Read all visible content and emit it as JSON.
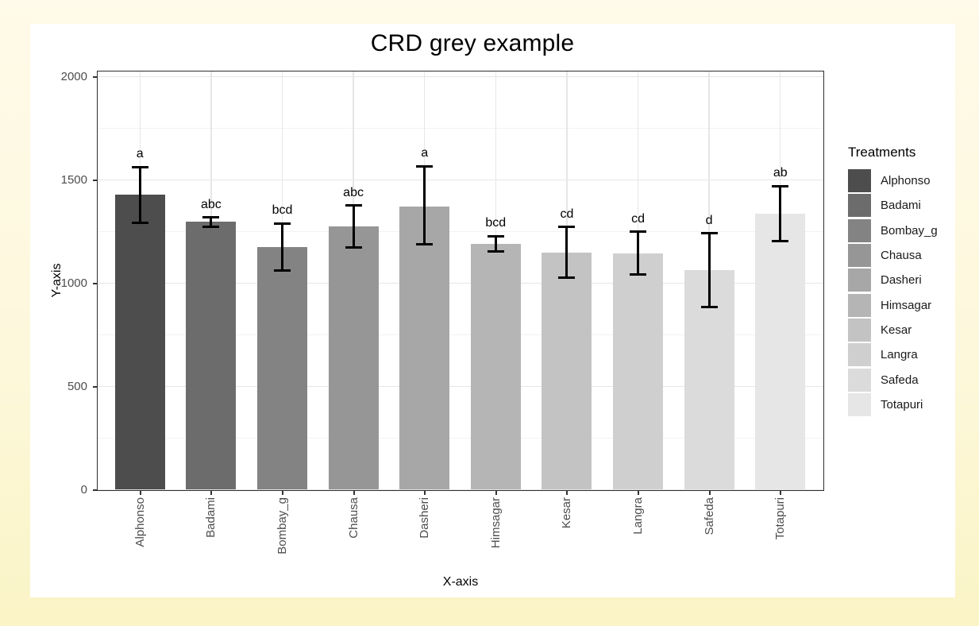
{
  "window": {
    "background_top": "#FFFAE9",
    "background_bottom": "#FAF4C6",
    "card_background": "#FFFFFF"
  },
  "chart_data": {
    "type": "bar",
    "title": "CRD grey example",
    "xlabel": "X-axis",
    "ylabel": "Y-axis",
    "legend_title": "Treatments",
    "legend_position": "right",
    "grid": "on",
    "ylim": [
      0,
      2000
    ],
    "y_major_ticks": [
      0,
      500,
      1000,
      1500,
      2000
    ],
    "y_minor_ticks": [
      250,
      750,
      1250,
      1750
    ],
    "categories": [
      "Alphonso",
      "Badami",
      "Bombay_g",
      "Chausa",
      "Dasheri",
      "Himsagar",
      "Kesar",
      "Langra",
      "Safeda",
      "Totapuri"
    ],
    "values": [
      1430,
      1296,
      1176,
      1275,
      1371,
      1190,
      1147,
      1145,
      1063,
      1337
    ],
    "error_lower": [
      1292,
      1271,
      1060,
      1174,
      1186,
      1153,
      1025,
      1042,
      884,
      1205
    ],
    "error_upper": [
      1562,
      1318,
      1288,
      1376,
      1565,
      1228,
      1271,
      1248,
      1240,
      1470
    ],
    "sig_letters": [
      "a",
      "abc",
      "bcd",
      "abc",
      "a",
      "bcd",
      "cd",
      "cd",
      "d",
      "ab"
    ],
    "bar_colors": [
      "#4D4D4D",
      "#6C6C6C",
      "#838383",
      "#969696",
      "#A7A7A7",
      "#B5B5B5",
      "#C3C3C3",
      "#CFCFCF",
      "#DBDBDB",
      "#E6E6E6"
    ],
    "error_bar_color": "#000000",
    "grid_major_color": "#E6E6E6",
    "grid_minor_color": "#F2F2F2",
    "axis_text_color": "#4D4D4D",
    "panel_border_color": "#2E2E2E"
  }
}
